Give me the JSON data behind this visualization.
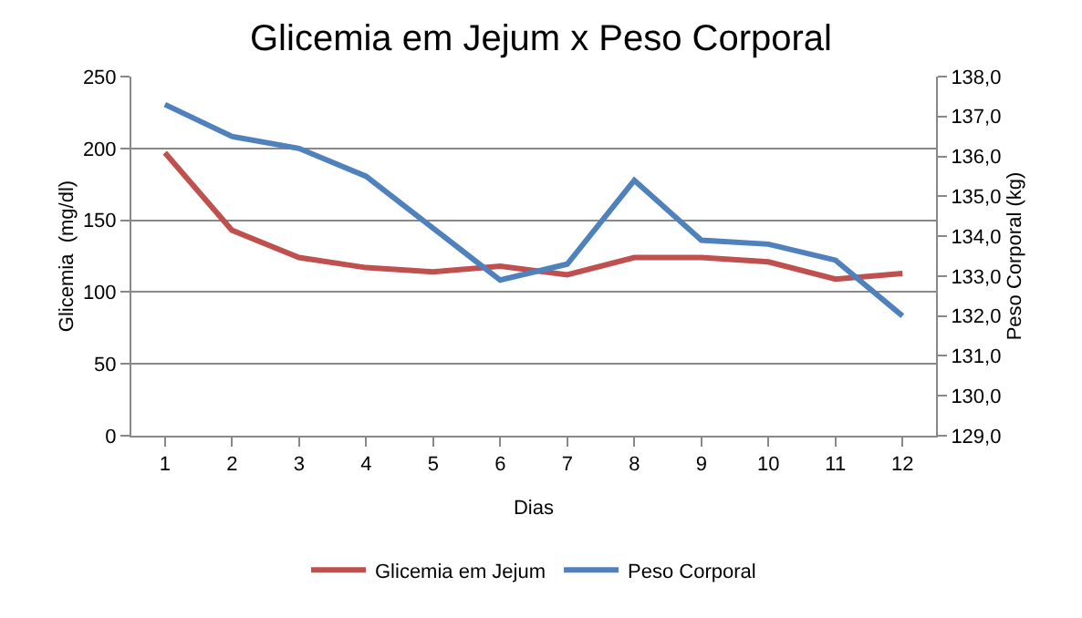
{
  "chart_data": {
    "type": "line",
    "title": "Glicemia em Jejum x Peso Corporal",
    "xlabel": "Dias",
    "ylabel": "Glicemia  (mg/dl)",
    "y2label": "Peso Corporal (kg)",
    "x": [
      1,
      2,
      3,
      4,
      5,
      6,
      7,
      8,
      9,
      10,
      11,
      12
    ],
    "xlim": [
      0.5,
      12.5
    ],
    "xticks": [
      1,
      2,
      3,
      4,
      5,
      6,
      7,
      8,
      9,
      10,
      11,
      12
    ],
    "series": [
      {
        "name": "Glicemia em Jejum",
        "color": "#c0504d",
        "values": [
          197,
          143,
          124,
          117,
          114,
          118,
          112,
          124,
          124,
          121,
          109,
          113
        ]
      },
      {
        "name": "Peso Corporal",
        "color": "#4f81bd",
        "axis": "y2",
        "values": [
          137.3,
          136.5,
          136.2,
          135.5,
          134.2,
          132.9,
          133.3,
          135.4,
          133.9,
          133.8,
          133.4,
          132.0
        ]
      }
    ],
    "ylim": [
      0,
      250
    ],
    "yticks": [
      0,
      50,
      100,
      150,
      200,
      250
    ],
    "y2lim": [
      129,
      138
    ],
    "y2ticks": [
      {
        "value": 129,
        "label": "129,0"
      },
      {
        "value": 130,
        "label": "130,0"
      },
      {
        "value": 131,
        "label": "131,0"
      },
      {
        "value": 132,
        "label": "132,0"
      },
      {
        "value": 133,
        "label": "133,0"
      },
      {
        "value": 134,
        "label": "134,0"
      },
      {
        "value": 135,
        "label": "135,0"
      },
      {
        "value": 136,
        "label": "136,0"
      },
      {
        "value": 137,
        "label": "137,0"
      },
      {
        "value": 138,
        "label": "138,0"
      }
    ],
    "grid": "y",
    "legend": "bottom",
    "marker": "none",
    "line_style": "solid"
  }
}
